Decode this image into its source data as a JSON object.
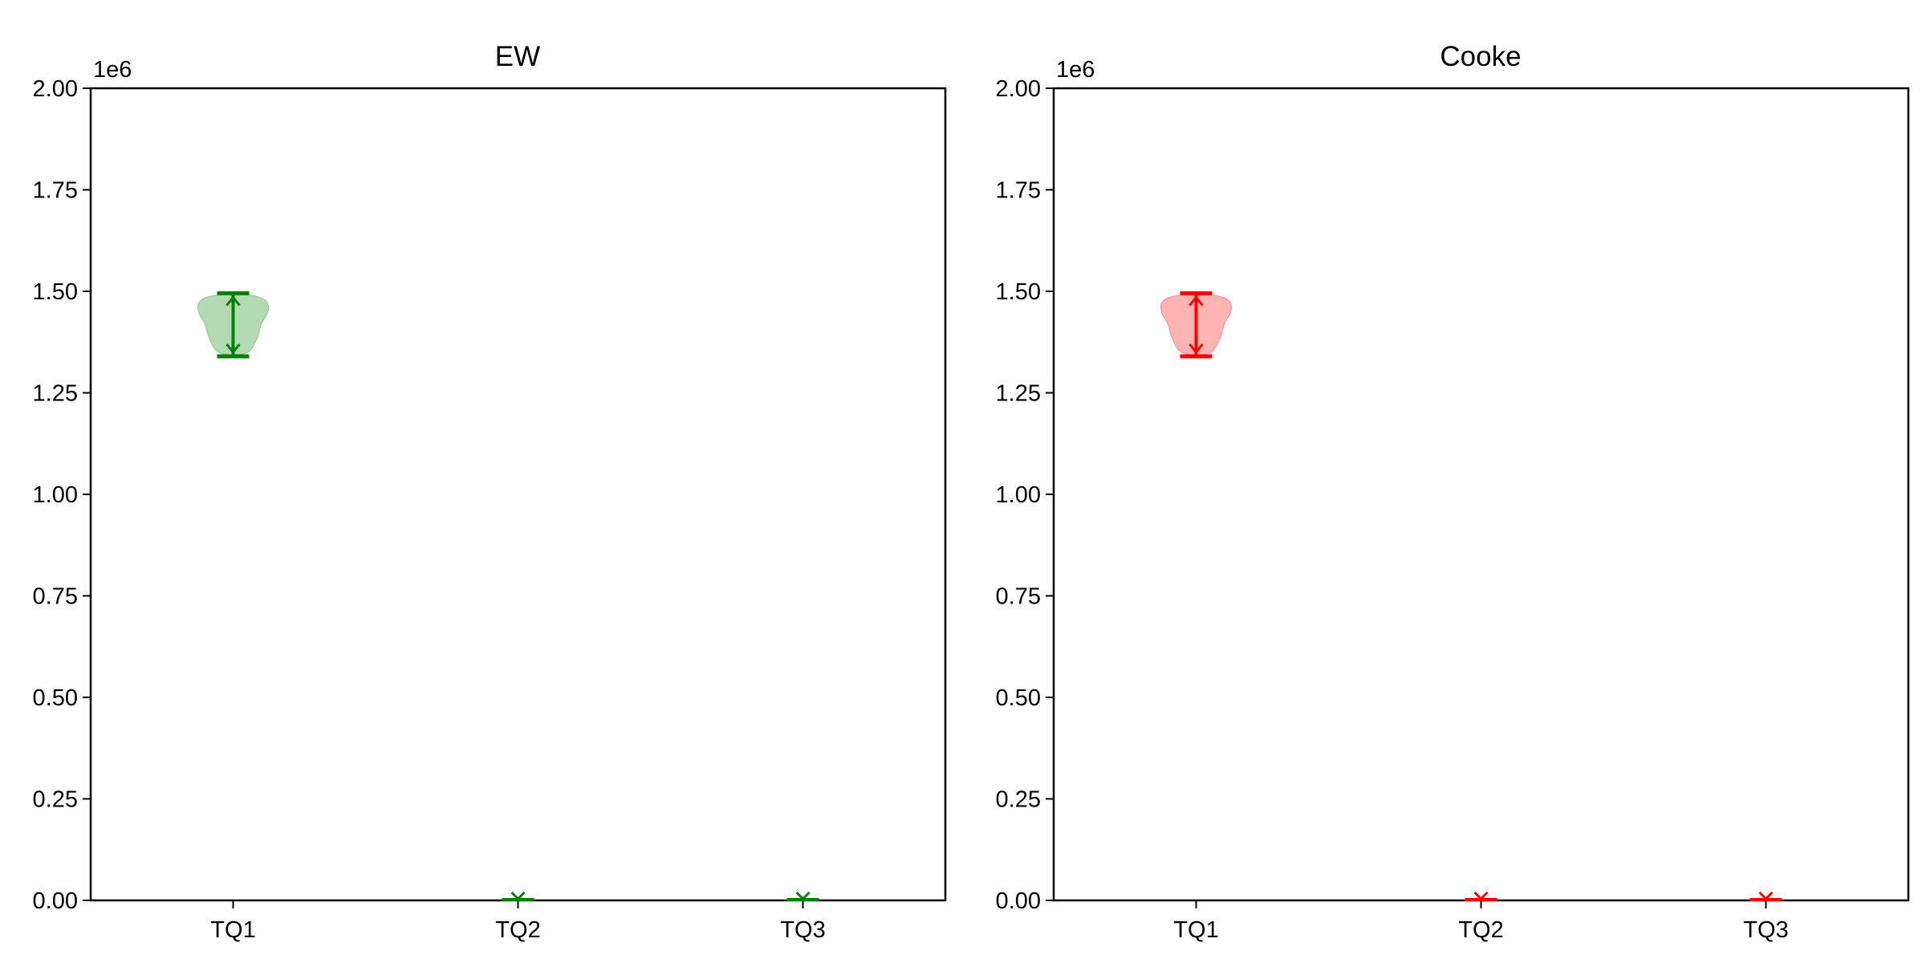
{
  "chart_data": [
    {
      "type": "violin",
      "title": "EW",
      "categories": [
        "TQ1",
        "TQ2",
        "TQ3"
      ],
      "color": "#008000",
      "fill_color": "#7fbf7f",
      "y_offset_label": "1e6",
      "ylim": [
        0,
        2000000
      ],
      "y_ticks": [
        0,
        250000,
        500000,
        750000,
        1000000,
        1250000,
        1500000,
        1750000,
        2000000
      ],
      "y_tick_labels": [
        "0.00",
        "0.25",
        "0.50",
        "0.75",
        "1.00",
        "1.25",
        "1.50",
        "1.75",
        "2.00"
      ],
      "series": [
        {
          "category": "TQ1",
          "min": 1340000,
          "max": 1495000
        },
        {
          "category": "TQ2",
          "min": 0,
          "max": 2000
        },
        {
          "category": "TQ3",
          "min": 0,
          "max": 2000
        }
      ],
      "grid": false
    },
    {
      "type": "violin",
      "title": "Cooke",
      "categories": [
        "TQ1",
        "TQ2",
        "TQ3"
      ],
      "color": "#ff0000",
      "fill_color": "#ff8080",
      "y_offset_label": "1e6",
      "ylim": [
        0,
        2000000
      ],
      "y_ticks": [
        0,
        250000,
        500000,
        750000,
        1000000,
        1250000,
        1500000,
        1750000,
        2000000
      ],
      "y_tick_labels": [
        "0.00",
        "0.25",
        "0.50",
        "0.75",
        "1.00",
        "1.25",
        "1.50",
        "1.75",
        "2.00"
      ],
      "series": [
        {
          "category": "TQ1",
          "min": 1340000,
          "max": 1495000
        },
        {
          "category": "TQ2",
          "min": 0,
          "max": 2000
        },
        {
          "category": "TQ3",
          "min": 0,
          "max": 2000
        }
      ],
      "grid": false
    }
  ]
}
